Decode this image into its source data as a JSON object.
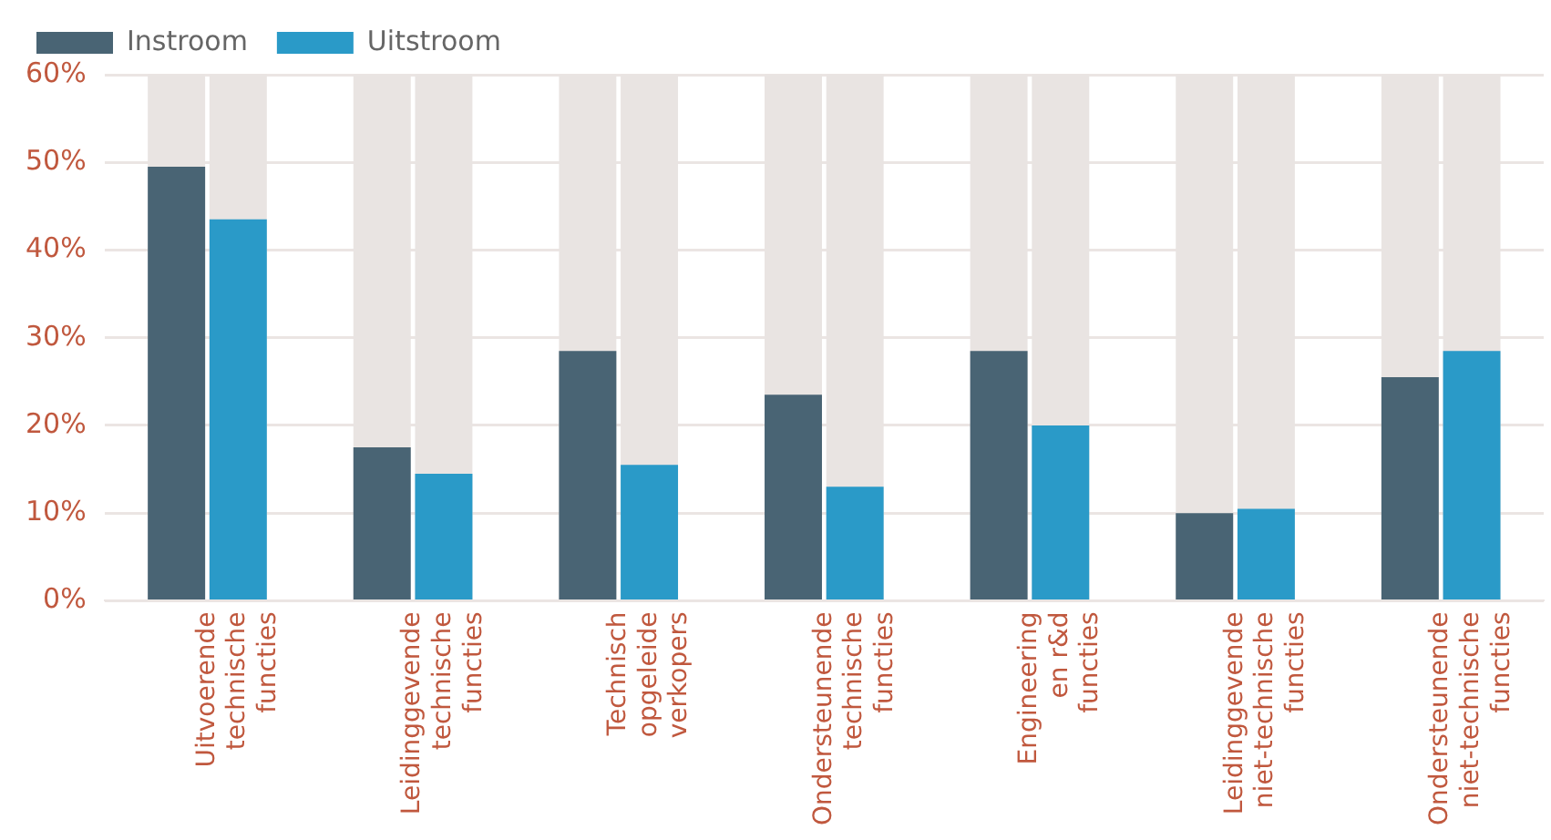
{
  "chart_data": {
    "type": "bar",
    "categories": [
      "Uitvoerende\ntechnische\nfuncties",
      "Leidinggevende\ntechnische\nfuncties",
      "Technisch\nopgeleide\nverkopers",
      "Ondersteunende\ntechnische\nfuncties",
      "Engineering\nen r&d\nfuncties",
      "Leidinggevende\nniet-technische\nfuncties",
      "Ondersteunende\nniet-technische\nfuncties"
    ],
    "series": [
      {
        "name": "Instroom",
        "color": "#496474",
        "values": [
          49.5,
          17.5,
          28.5,
          23.5,
          28.5,
          10,
          25.5
        ]
      },
      {
        "name": "Uitstroom",
        "color": "#2a9ac8",
        "values": [
          43.5,
          14.5,
          15.5,
          13,
          20,
          10.5,
          28.5
        ]
      }
    ],
    "ylim": [
      0,
      60
    ],
    "yticks": [
      {
        "value": 0,
        "label": "0%"
      },
      {
        "value": 10,
        "label": "10%"
      },
      {
        "value": 20,
        "label": "20%"
      },
      {
        "value": 30,
        "label": "30%"
      },
      {
        "value": 40,
        "label": "40%"
      },
      {
        "value": 50,
        "label": "50%"
      },
      {
        "value": 60,
        "label": "60%"
      }
    ],
    "grid": "y",
    "legend": "top left"
  }
}
